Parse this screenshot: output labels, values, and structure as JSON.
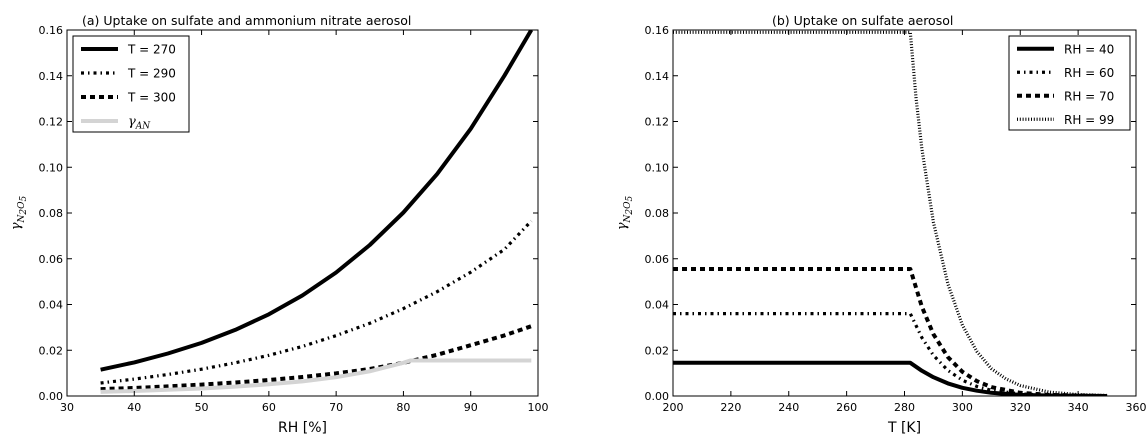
{
  "chart_data": [
    {
      "type": "line",
      "title": "(a) Uptake on sulfate and ammonium nitrate aerosol",
      "xlabel": "RH [%]",
      "ylabel": "γN2O5",
      "xlim": [
        30,
        100
      ],
      "ylim": [
        0,
        0.16
      ],
      "xticks": [
        "30",
        "40",
        "50",
        "60",
        "70",
        "80",
        "90",
        "100"
      ],
      "yticks": [
        "0.00",
        "0.02",
        "0.04",
        "0.06",
        "0.08",
        "0.10",
        "0.12",
        "0.14",
        "0.16"
      ],
      "legend_position": "top-left",
      "series": [
        {
          "name": "T = 270",
          "style": "solid",
          "color": "#000000",
          "x": [
            35,
            40,
            45,
            50,
            55,
            60,
            65,
            70,
            75,
            80,
            85,
            90,
            95,
            99
          ],
          "y": [
            0.0115,
            0.0147,
            0.0186,
            0.0232,
            0.0289,
            0.0357,
            0.044,
            0.054,
            0.066,
            0.0802,
            0.097,
            0.1168,
            0.14,
            0.16
          ]
        },
        {
          "name": "T = 290",
          "style": "dashdot",
          "color": "#000000",
          "x": [
            35,
            40,
            45,
            50,
            55,
            60,
            65,
            70,
            75,
            80,
            85,
            90,
            95,
            99
          ],
          "y": [
            0.0057,
            0.0074,
            0.0094,
            0.0117,
            0.0145,
            0.0178,
            0.0217,
            0.0264,
            0.0318,
            0.0382,
            0.0456,
            0.0541,
            0.0641,
            0.0765
          ]
        },
        {
          "name": "T = 300",
          "style": "dashed",
          "color": "#000000",
          "x": [
            35,
            40,
            45,
            50,
            55,
            60,
            65,
            70,
            75,
            80,
            85,
            90,
            95,
            99
          ],
          "y": [
            0.003,
            0.0035,
            0.0042,
            0.005,
            0.0059,
            0.007,
            0.0083,
            0.0099,
            0.0118,
            0.0145,
            0.018,
            0.0222,
            0.0265,
            0.0305
          ]
        },
        {
          "name": "γAN",
          "style": "solid",
          "color": "#d4d4d4",
          "x": [
            35,
            40,
            45,
            50,
            55,
            60,
            65,
            70,
            75,
            80,
            81,
            85,
            90,
            95,
            99
          ],
          "y": [
            0.0018,
            0.0022,
            0.0027,
            0.0033,
            0.0041,
            0.0051,
            0.0064,
            0.0082,
            0.0108,
            0.0145,
            0.0155,
            0.0155,
            0.0155,
            0.0155,
            0.0155
          ]
        }
      ]
    },
    {
      "type": "line",
      "title": "(b) Uptake on sulfate aerosol",
      "xlabel": "T [K]",
      "ylabel": "γN2O5",
      "xlim": [
        200,
        360
      ],
      "ylim": [
        0,
        0.16
      ],
      "xticks": [
        "200",
        "220",
        "240",
        "260",
        "280",
        "300",
        "320",
        "340",
        "360"
      ],
      "yticks": [
        "0.00",
        "0.02",
        "0.04",
        "0.06",
        "0.08",
        "0.10",
        "0.12",
        "0.14",
        "0.16"
      ],
      "legend_position": "top-right",
      "series": [
        {
          "name": "RH = 40",
          "style": "solid",
          "color": "#000000",
          "x": [
            200,
            282,
            286,
            290,
            295,
            300,
            305,
            310,
            320,
            330,
            340,
            350
          ],
          "y": [
            0.0145,
            0.0145,
            0.011,
            0.0082,
            0.0055,
            0.0036,
            0.0023,
            0.0014,
            0.0005,
            0.0002,
            0.0001,
            0.0
          ]
        },
        {
          "name": "RH = 60",
          "style": "dashdot",
          "color": "#000000",
          "x": [
            200,
            282,
            286,
            290,
            295,
            300,
            305,
            310,
            320,
            330,
            340,
            350
          ],
          "y": [
            0.036,
            0.036,
            0.0255,
            0.0178,
            0.0112,
            0.0069,
            0.0042,
            0.0025,
            0.0009,
            0.0003,
            0.0001,
            0.0
          ]
        },
        {
          "name": "RH = 70",
          "style": "dashed",
          "color": "#000000",
          "x": [
            200,
            282,
            286,
            290,
            295,
            300,
            305,
            310,
            320,
            330,
            340,
            350
          ],
          "y": [
            0.0555,
            0.0555,
            0.039,
            0.027,
            0.017,
            0.0106,
            0.0065,
            0.0039,
            0.0014,
            0.0005,
            0.0002,
            0.0
          ]
        },
        {
          "name": "RH = 99",
          "style": "dotted",
          "color": "#000000",
          "x": [
            200,
            282,
            284,
            286,
            290,
            295,
            300,
            305,
            310,
            315,
            320,
            330,
            340,
            350
          ],
          "y": [
            0.159,
            0.159,
            0.13,
            0.108,
            0.076,
            0.049,
            0.031,
            0.0195,
            0.012,
            0.0075,
            0.0046,
            0.0017,
            0.0006,
            0.0002
          ]
        }
      ]
    }
  ]
}
